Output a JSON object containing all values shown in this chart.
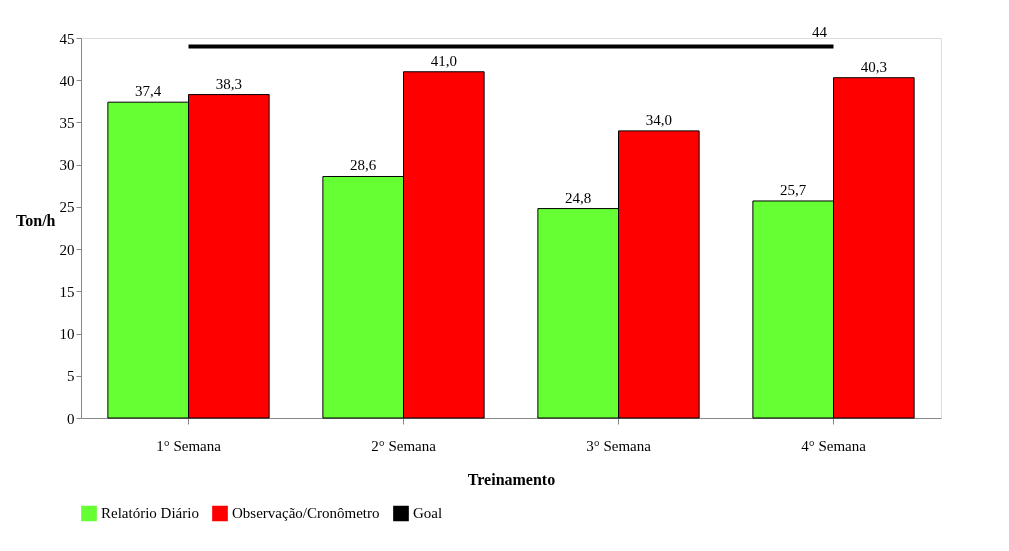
{
  "chart_data": {
    "type": "bar",
    "xlabel": "Treinamento",
    "ylabel": "Ton/h",
    "categories": [
      "1° Semana",
      "2° Semana",
      "3° Semana",
      "4° Semana"
    ],
    "series": [
      {
        "name": "Relatório Diário",
        "color": "#66ff33",
        "values": [
          37.4,
          28.6,
          24.8,
          25.7
        ],
        "value_labels": [
          "37,4",
          "28,6",
          "24,8",
          "25,7"
        ]
      },
      {
        "name": "Observação/Cronômetro",
        "color": "#ff0000",
        "values": [
          38.3,
          41.0,
          34.0,
          40.3
        ],
        "value_labels": [
          "38,3",
          "41,0",
          "34,0",
          "40,3"
        ]
      },
      {
        "name": "Goal",
        "type": "line",
        "color": "#000000",
        "values": [
          44,
          44,
          44,
          44
        ],
        "value_labels": [
          null,
          null,
          null,
          "44"
        ]
      }
    ],
    "ylim": [
      0,
      45
    ],
    "yticks": [
      0,
      5,
      10,
      15,
      20,
      25,
      30,
      35,
      40,
      45
    ],
    "grid": false,
    "legend": "bottom"
  }
}
